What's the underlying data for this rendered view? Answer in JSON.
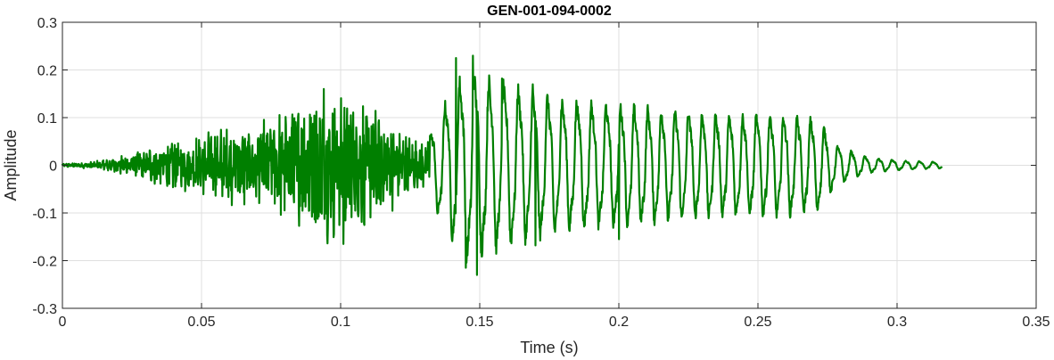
{
  "chart_data": {
    "type": "line",
    "title": "GEN-001-094-0002",
    "xlabel": "Time (s)",
    "ylabel": "Amplitude",
    "xlim": [
      0,
      0.35
    ],
    "ylim": [
      -0.3,
      0.3
    ],
    "xticks": [
      0,
      0.05,
      0.1,
      0.15,
      0.2,
      0.25,
      0.3,
      0.35
    ],
    "xtick_labels": [
      "0",
      "0.05",
      "0.1",
      "0.15",
      "0.2",
      "0.25",
      "0.3",
      "0.35"
    ],
    "yticks": [
      -0.3,
      -0.2,
      -0.1,
      0,
      0.1,
      0.2,
      0.3
    ],
    "ytick_labels": [
      "-0.3",
      "-0.2",
      "-0.1",
      "0",
      "0.1",
      "0.2",
      "0.3"
    ],
    "grid": true,
    "series": [
      {
        "color": "#007f00",
        "x_range": [
          0,
          0.316
        ],
        "envelope": [
          [
            0.0,
            0.003
          ],
          [
            0.01,
            0.006
          ],
          [
            0.02,
            0.015
          ],
          [
            0.03,
            0.03
          ],
          [
            0.04,
            0.045
          ],
          [
            0.05,
            0.055
          ],
          [
            0.06,
            0.07
          ],
          [
            0.07,
            0.085
          ],
          [
            0.08,
            0.1
          ],
          [
            0.09,
            0.13
          ],
          [
            0.1,
            0.13
          ],
          [
            0.11,
            0.11
          ],
          [
            0.12,
            0.07
          ],
          [
            0.13,
            0.04
          ],
          [
            0.135,
            0.1
          ],
          [
            0.145,
            0.19
          ],
          [
            0.16,
            0.16
          ],
          [
            0.18,
            0.13
          ],
          [
            0.2,
            0.12
          ],
          [
            0.22,
            0.11
          ],
          [
            0.24,
            0.1
          ],
          [
            0.26,
            0.1
          ],
          [
            0.272,
            0.09
          ],
          [
            0.278,
            0.04
          ],
          [
            0.29,
            0.015
          ],
          [
            0.3,
            0.01
          ],
          [
            0.316,
            0.006
          ]
        ],
        "peaks": [
          [
            0.094,
            0.16
          ],
          [
            0.101,
            -0.165
          ],
          [
            0.1415,
            0.225
          ],
          [
            0.1475,
            0.23
          ],
          [
            0.149,
            -0.23
          ],
          [
            0.145,
            -0.215
          ],
          [
            0.158,
            0.182
          ],
          [
            0.169,
            0.17
          ],
          [
            0.17,
            -0.168
          ],
          [
            0.2,
            -0.155
          ]
        ]
      }
    ]
  }
}
